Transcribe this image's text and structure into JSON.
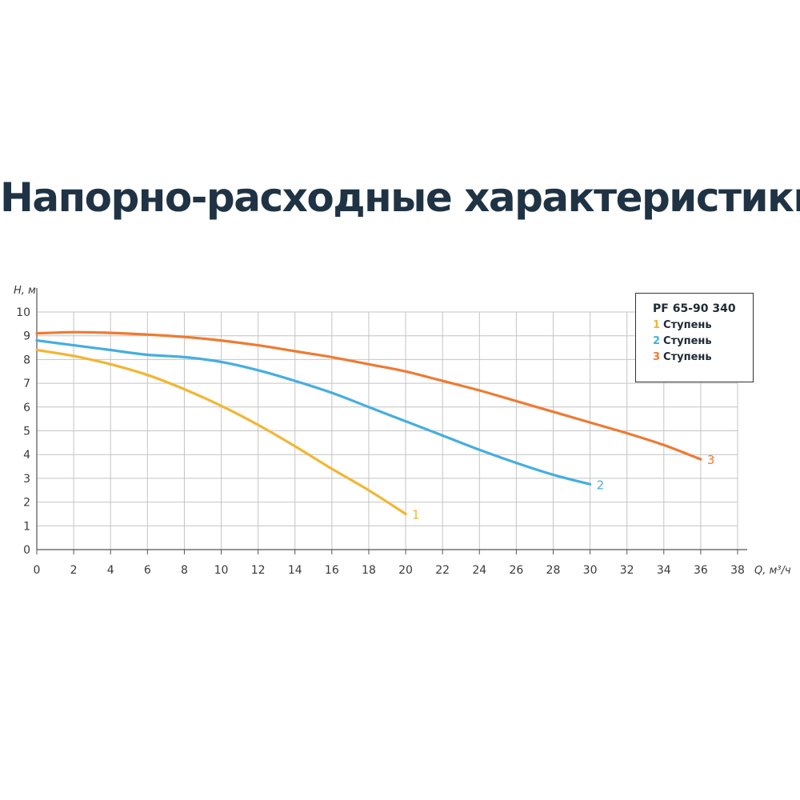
{
  "chart_data": {
    "type": "line",
    "title": "Напорно-расходные характеристики",
    "xlabel": "Q, м³/ч",
    "ylabel": "H, м",
    "xlim": [
      0,
      38
    ],
    "ylim": [
      0,
      10
    ],
    "x_ticks": [
      0,
      2,
      4,
      6,
      8,
      10,
      12,
      14,
      16,
      18,
      20,
      22,
      24,
      26,
      28,
      30,
      32,
      34,
      36,
      38
    ],
    "y_ticks": [
      0,
      1,
      2,
      3,
      4,
      5,
      6,
      7,
      8,
      9,
      10
    ],
    "grid": true,
    "legend": {
      "position": "top-right",
      "title": "PF 65-90 340",
      "entries": [
        {
          "num": "1",
          "text": "Ступень"
        },
        {
          "num": "2",
          "text": "Ступень"
        },
        {
          "num": "3",
          "text": "Ступень"
        }
      ]
    },
    "series": [
      {
        "label": "1",
        "color": "#f2b632",
        "x": [
          0,
          2,
          4,
          6,
          8,
          10,
          12,
          14,
          16,
          18,
          20
        ],
        "y": [
          8.4,
          8.15,
          7.8,
          7.35,
          6.75,
          6.05,
          5.25,
          4.35,
          3.4,
          2.5,
          1.5
        ]
      },
      {
        "label": "2",
        "color": "#45aee0",
        "x": [
          0,
          2,
          4,
          6,
          8,
          10,
          12,
          14,
          16,
          18,
          20,
          22,
          24,
          26,
          28,
          30
        ],
        "y": [
          8.8,
          8.6,
          8.4,
          8.2,
          8.1,
          7.9,
          7.55,
          7.1,
          6.6,
          6.0,
          5.4,
          4.8,
          4.2,
          3.65,
          3.15,
          2.75
        ]
      },
      {
        "label": "3",
        "color": "#ef7a32",
        "x": [
          0,
          2,
          4,
          6,
          8,
          10,
          12,
          14,
          16,
          18,
          20,
          22,
          24,
          26,
          28,
          30,
          32,
          34,
          36
        ],
        "y": [
          9.1,
          9.15,
          9.12,
          9.05,
          8.95,
          8.8,
          8.6,
          8.35,
          8.1,
          7.8,
          7.5,
          7.1,
          6.7,
          6.25,
          5.8,
          5.35,
          4.9,
          4.4,
          3.8
        ]
      }
    ]
  }
}
